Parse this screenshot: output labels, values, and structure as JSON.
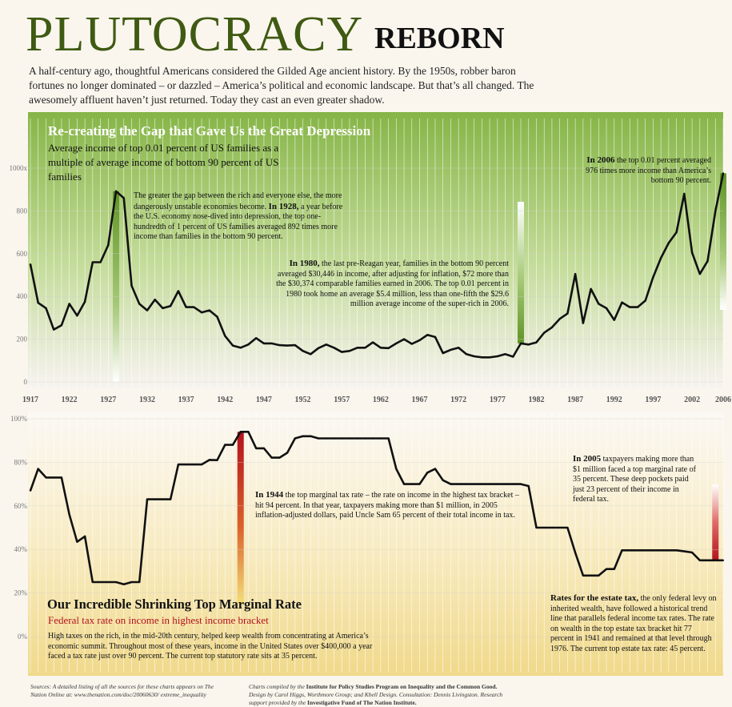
{
  "header": {
    "title_main": "PLUTOCRACY",
    "title_sub": "REBORN",
    "intro": "A half-century ago, thoughtful Americans considered the Gilded Age ancient history. By the 1950s, robber baron fortunes no longer dominated – or dazzled – America’s political and economic landscape. But that’s all changed. The awesomely affluent haven’t just returned. Today they cast an even greater shadow."
  },
  "colors": {
    "title_green": "#3f5a12",
    "line": "#111111",
    "green_bar": "#7aa83a",
    "red_bar": "#b3121c",
    "top_panel": "#8db94c",
    "bottom_panel": "#f2dc8e"
  },
  "chart_data": [
    {
      "type": "line",
      "title": "Re-creating the Gap that Gave Us the Great Depression",
      "subtitle": "Average income of top 0.01 percent of US families as a multiple of average income of bottom 90 percent of US families",
      "x": [
        1917,
        1918,
        1919,
        1920,
        1921,
        1922,
        1923,
        1924,
        1925,
        1926,
        1927,
        1928,
        1929,
        1930,
        1931,
        1932,
        1933,
        1934,
        1935,
        1936,
        1937,
        1938,
        1939,
        1940,
        1941,
        1942,
        1943,
        1944,
        1945,
        1946,
        1947,
        1948,
        1949,
        1950,
        1951,
        1952,
        1953,
        1954,
        1955,
        1956,
        1957,
        1958,
        1959,
        1960,
        1961,
        1962,
        1963,
        1964,
        1965,
        1966,
        1967,
        1968,
        1969,
        1970,
        1971,
        1972,
        1973,
        1974,
        1975,
        1976,
        1977,
        1978,
        1979,
        1980,
        1981,
        1982,
        1983,
        1984,
        1985,
        1986,
        1987,
        1988,
        1989,
        1990,
        1991,
        1992,
        1993,
        1994,
        1995,
        1996,
        1997,
        1998,
        1999,
        2000,
        2001,
        2002,
        2003,
        2004,
        2005,
        2006
      ],
      "values": [
        550,
        370,
        345,
        245,
        265,
        365,
        310,
        375,
        560,
        560,
        640,
        892,
        860,
        450,
        365,
        335,
        385,
        345,
        355,
        425,
        350,
        350,
        325,
        335,
        305,
        215,
        170,
        160,
        175,
        205,
        180,
        180,
        172,
        170,
        172,
        145,
        130,
        158,
        175,
        160,
        140,
        145,
        160,
        160,
        185,
        160,
        158,
        180,
        200,
        178,
        195,
        220,
        210,
        135,
        150,
        160,
        130,
        120,
        115,
        115,
        120,
        130,
        118,
        180,
        175,
        185,
        230,
        255,
        295,
        320,
        505,
        275,
        435,
        365,
        345,
        290,
        372,
        350,
        350,
        380,
        490,
        580,
        650,
        700,
        880,
        605,
        505,
        565,
        800,
        976
      ],
      "x_ticks": [
        "1917",
        "1922",
        "1927",
        "1932",
        "1937",
        "1942",
        "1947",
        "1952",
        "1957",
        "1962",
        "1967",
        "1972",
        "1977",
        "1982",
        "1987",
        "1992",
        "1997",
        "2002",
        "2006"
      ],
      "y_ticks": [
        "0",
        "200",
        "400",
        "600",
        "800",
        "1000x"
      ],
      "ylim": [
        0,
        1000
      ]
    },
    {
      "type": "line",
      "title": "Our Incredible Shrinking Top Marginal Rate",
      "subtitle": "Federal tax rate on income in highest income bracket",
      "x": [
        1917,
        1918,
        1919,
        1920,
        1921,
        1922,
        1923,
        1924,
        1925,
        1926,
        1927,
        1928,
        1929,
        1930,
        1931,
        1932,
        1933,
        1934,
        1935,
        1936,
        1937,
        1938,
        1939,
        1940,
        1941,
        1942,
        1943,
        1944,
        1945,
        1946,
        1947,
        1948,
        1949,
        1950,
        1951,
        1952,
        1953,
        1954,
        1955,
        1956,
        1957,
        1958,
        1959,
        1960,
        1961,
        1962,
        1963,
        1964,
        1965,
        1966,
        1967,
        1968,
        1969,
        1970,
        1971,
        1972,
        1973,
        1974,
        1975,
        1976,
        1977,
        1978,
        1979,
        1980,
        1981,
        1982,
        1983,
        1984,
        1985,
        1986,
        1987,
        1988,
        1989,
        1990,
        1991,
        1992,
        1993,
        1994,
        1995,
        1996,
        1997,
        1998,
        1999,
        2000,
        2001,
        2002,
        2003,
        2004,
        2005,
        2006
      ],
      "values": [
        67,
        77,
        73,
        73,
        73,
        56,
        43.5,
        46,
        25,
        25,
        25,
        25,
        24,
        25,
        25,
        63,
        63,
        63,
        63,
        79,
        79,
        79,
        79,
        81.1,
        81,
        88,
        88,
        94,
        94,
        86.45,
        86.45,
        82.13,
        82.13,
        84.36,
        91,
        92,
        92,
        91,
        91,
        91,
        91,
        91,
        91,
        91,
        91,
        91,
        91,
        77,
        70,
        70,
        70,
        75.25,
        77,
        71.75,
        70,
        70,
        70,
        70,
        70,
        70,
        70,
        70,
        70,
        70,
        69.13,
        50,
        50,
        50,
        50,
        50,
        38.5,
        28,
        28,
        28,
        31,
        31,
        39.6,
        39.6,
        39.6,
        39.6,
        39.6,
        39.6,
        39.6,
        39.6,
        39.1,
        38.6,
        35,
        35,
        35,
        35
      ],
      "x_ticks": [
        "1917",
        "1922",
        "1927",
        "1932",
        "1937",
        "1942",
        "1947",
        "1952",
        "1957",
        "1962",
        "1967",
        "1972",
        "1977",
        "1982",
        "1987",
        "1992",
        "1997",
        "2002",
        "2006"
      ],
      "y_ticks": [
        "0%",
        "20%",
        "40%",
        "60%",
        "80%",
        "100%"
      ],
      "ylim": [
        0,
        100
      ]
    }
  ],
  "annotations": {
    "a1928": {
      "bold": "In 1928,",
      "pre": "The greater the gap between the rich and everyone else, the more dangerously unstable economies become. ",
      "post": " a year before the U.S. economy nose-dived into depression, the top one-hundredth of 1 percent of US families averaged 892 times more income than families in the bottom 90 percent."
    },
    "a1980": {
      "bold": "In 1980,",
      "post": " the last pre-Reagan year, families in the bottom 90 percent averaged $30,446 in income, after adjusting for inflation, $72 more than the $30,374 comparable families earned in 2006. The top 0.01 percent in 1980 took home an average $5.4 million, less than one-fifth the $29.6 million average income of the super-rich in 2006."
    },
    "a2006": {
      "bold": "In 2006",
      "post": " the top 0.01 percent averaged 976 times more income than America’s bottom 90 percent."
    },
    "a1944": {
      "bold": "In 1944",
      "post": " the top marginal tax rate – the rate on income in the highest tax bracket – hit 94 percent. In that year, taxpayers making more than $1 million, in 2005 inflation-adjusted dollars, paid Uncle Sam 65 percent of their total income in tax."
    },
    "a2005": {
      "bold": "In 2005",
      "post": " taxpayers making more than $1 million faced a top marginal rate of 35 percent. These deep pockets paid just 23 percent of their income in federal tax."
    },
    "estate": {
      "bold": "Rates for the estate tax,",
      "post": " the only federal levy on inherited wealth, have followed a historical trend line that parallels federal income tax rates. The rate on wealth in the top estate tax bracket hit 77 percent in 1941 and remained at that level through 1976. The current top estate tax rate: 45 percent."
    },
    "bottom_text": "High taxes on the rich, in the mid-20th century, helped keep wealth from concentrating at America’s economic summit. Throughout most of these years, income in the United States over $400,000 a year faced a tax rate just over 90 percent. The current top statutory rate sits at 35 percent."
  },
  "footer": {
    "sources": "Sources: A detailed listing of all the sources for these charts appears on The Nation Online at: www.thenation.com/doc/20060630/ extreme_inequality",
    "credits_pre": "Charts compiled by the ",
    "credits_bold1": "Institute for Policy Studies Program on Inequality and the Common Good.",
    "credits_mid": "Design by Carol Higgs, Worthmore Group; and Kbell Design. Consultation: Dennis Livingston. Research support provided by the ",
    "credits_bold2": "Investigative Fund of The Nation Institute."
  }
}
